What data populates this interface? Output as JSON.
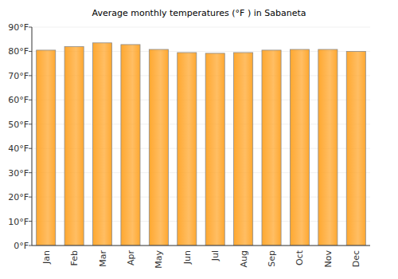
{
  "chart_data": {
    "type": "bar",
    "title": "Average monthly temperatures (°F ) in Sabaneta",
    "categories": [
      "Jan",
      "Feb",
      "Mar",
      "Apr",
      "May",
      "Jun",
      "Jul",
      "Aug",
      "Sep",
      "Oct",
      "Nov",
      "Dec"
    ],
    "values": [
      80.5,
      82,
      83.5,
      82.8,
      80.8,
      79.5,
      79.2,
      79.5,
      80.5,
      80.8,
      80.8,
      80
    ],
    "color": "#ffa830",
    "ylim": [
      0,
      90
    ],
    "yticks": [
      {
        "value": 0,
        "label": "0°F"
      },
      {
        "value": 10,
        "label": "10°F"
      },
      {
        "value": 20,
        "label": "20°F"
      },
      {
        "value": 30,
        "label": "30°F"
      },
      {
        "value": 40,
        "label": "40°F"
      },
      {
        "value": 50,
        "label": "50°F"
      },
      {
        "value": 60,
        "label": "60°F"
      },
      {
        "value": 70,
        "label": "70°F"
      },
      {
        "value": 80,
        "label": "80°F"
      },
      {
        "value": 90,
        "label": "90°F"
      }
    ],
    "grid": true
  }
}
